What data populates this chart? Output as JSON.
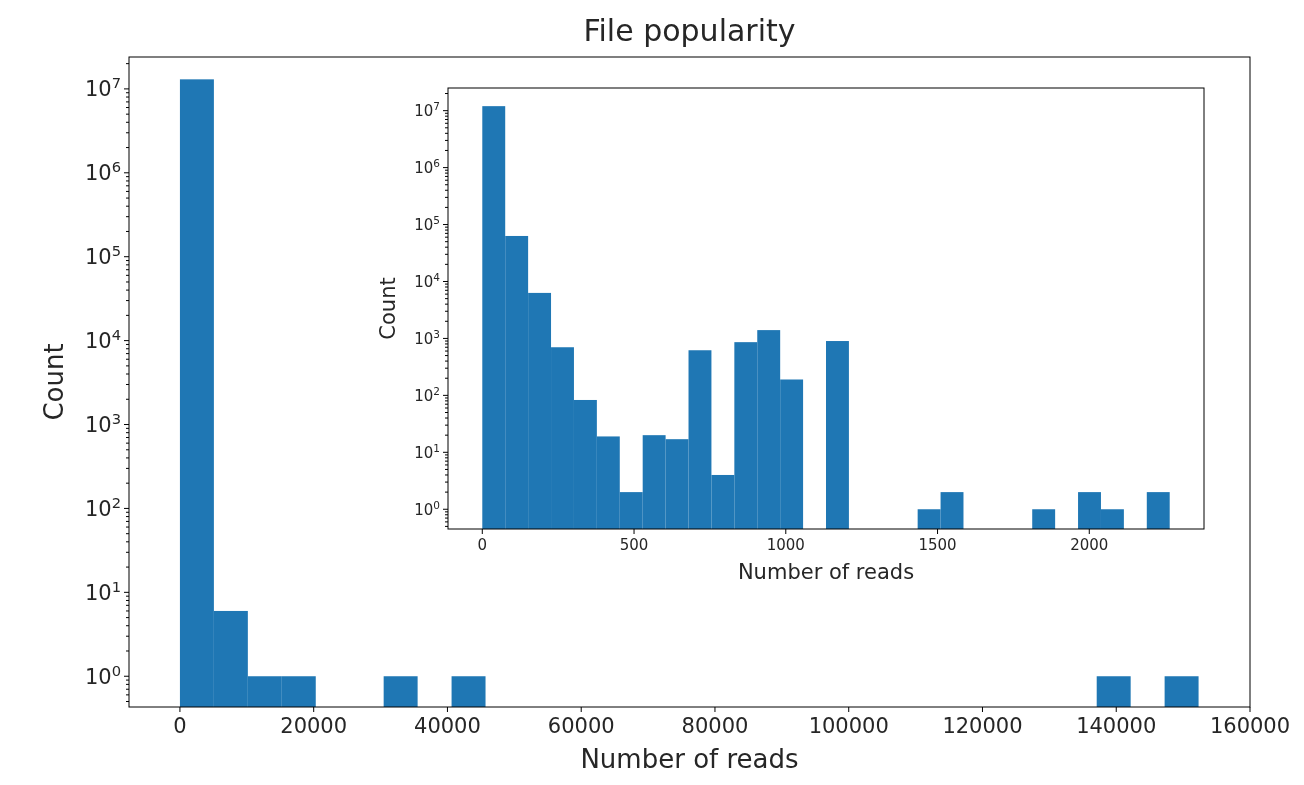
{
  "chart_data": [
    {
      "type": "histogram",
      "title": "File popularity",
      "xlabel": "Number of reads",
      "ylabel": "Count",
      "color": "#1f77b4",
      "log": true,
      "bins": [
        0,
        5077,
        10154,
        15231,
        20308,
        25385,
        30462,
        35539,
        40616,
        45693,
        50770,
        55847,
        60924,
        66001,
        71078,
        76155,
        81232,
        86309,
        91386,
        96463,
        101540,
        106617,
        111694,
        116771,
        121848,
        126925,
        132002,
        137079,
        142156,
        147233,
        152310
      ],
      "values": [
        13000000,
        6,
        1,
        1,
        null,
        null,
        1,
        null,
        1,
        null,
        null,
        null,
        null,
        null,
        null,
        null,
        null,
        null,
        null,
        null,
        null,
        null,
        null,
        null,
        null,
        null,
        null,
        1,
        null,
        1
      ],
      "xlim": [
        -7616,
        160000
      ],
      "xticks": [
        0,
        20000,
        40000,
        60000,
        80000,
        100000,
        120000,
        140000,
        160000
      ],
      "ylim": [
        0.43,
        24000000
      ],
      "yticks": [
        {
          "value": 1,
          "label": "10$^{0}$"
        },
        {
          "value": 10,
          "label": "10$^{1}$"
        },
        {
          "value": 100,
          "label": "10$^{2}$"
        },
        {
          "value": 1000,
          "label": "10$^{3}$"
        },
        {
          "value": 10000,
          "label": "10$^{4}$"
        },
        {
          "value": 100000,
          "label": "10$^{5}$"
        },
        {
          "value": 1000000,
          "label": "10$^{6}$"
        },
        {
          "value": 10000000,
          "label": "10$^{7}$"
        }
      ]
    },
    {
      "type": "histogram",
      "xlabel": "Number of reads",
      "ylabel": "Count",
      "color": "#1f77b4",
      "log": true,
      "bins": [
        0,
        75.5,
        151,
        226.5,
        302,
        377.5,
        453,
        528.5,
        604,
        679.5,
        755,
        830.5,
        906,
        981.5,
        1057,
        1132.5,
        1208,
        1283.5,
        1359,
        1434.5,
        1510,
        1585.5,
        1661,
        1736.5,
        1812,
        1887.5,
        1963,
        2038.5,
        2114,
        2189.5,
        2265
      ],
      "values": [
        12000000,
        63000,
        6300,
        700,
        83,
        19,
        2,
        20,
        17,
        620,
        4,
        860,
        1400,
        190,
        null,
        900,
        null,
        null,
        null,
        1,
        2,
        null,
        null,
        null,
        1,
        null,
        2,
        1,
        null,
        2
      ],
      "xlim": [
        -113,
        2378
      ],
      "xticks": [
        0,
        500,
        1000,
        1500,
        2000
      ],
      "ylim": [
        0.45,
        25000000
      ],
      "yticks": [
        {
          "value": 1,
          "label": "10$^{0}$"
        },
        {
          "value": 10,
          "label": "10$^{1}$"
        },
        {
          "value": 100,
          "label": "10$^{2}$"
        },
        {
          "value": 1000,
          "label": "10$^{3}$"
        },
        {
          "value": 10000,
          "label": "10$^{4}$"
        },
        {
          "value": 100000,
          "label": "10$^{5}$"
        },
        {
          "value": 1000000,
          "label": "10$^{6}$"
        },
        {
          "value": 10000000,
          "label": "10$^{7}$"
        }
      ]
    }
  ]
}
